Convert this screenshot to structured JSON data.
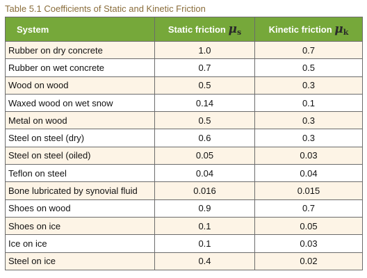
{
  "caption": "Table 5.1 Coefficients of Static and Kinetic Friction",
  "headers": {
    "system": "System",
    "static": "Static friction",
    "static_symbol": "μ",
    "static_sub": "s",
    "kinetic": "Kinetic friction",
    "kinetic_symbol": "μ",
    "kinetic_sub": "k"
  },
  "rows": [
    {
      "system": "Rubber on dry concrete",
      "static": "1.0",
      "kinetic": "0.7"
    },
    {
      "system": "Rubber on wet concrete",
      "static": "0.7",
      "kinetic": "0.5"
    },
    {
      "system": "Wood on wood",
      "static": "0.5",
      "kinetic": "0.3"
    },
    {
      "system": "Waxed wood on wet snow",
      "static": "0.14",
      "kinetic": "0.1"
    },
    {
      "system": "Metal on wood",
      "static": "0.5",
      "kinetic": "0.3"
    },
    {
      "system": "Steel on steel (dry)",
      "static": "0.6",
      "kinetic": "0.3"
    },
    {
      "system": "Steel on steel (oiled)",
      "static": "0.05",
      "kinetic": "0.03"
    },
    {
      "system": "Teflon on steel",
      "static": "0.04",
      "kinetic": "0.04"
    },
    {
      "system": "Bone lubricated by synovial fluid",
      "static": "0.016",
      "kinetic": "0.015"
    },
    {
      "system": "Shoes on wood",
      "static": "0.9",
      "kinetic": "0.7"
    },
    {
      "system": "Shoes on ice",
      "static": "0.1",
      "kinetic": "0.05"
    },
    {
      "system": "Ice on ice",
      "static": "0.1",
      "kinetic": "0.03"
    },
    {
      "system": "Steel on ice",
      "static": "0.4",
      "kinetic": "0.02"
    }
  ],
  "colors": {
    "header_bg": "#76a83a",
    "caption": "#8a6d3b",
    "row_alt": "#fdf4e6"
  }
}
